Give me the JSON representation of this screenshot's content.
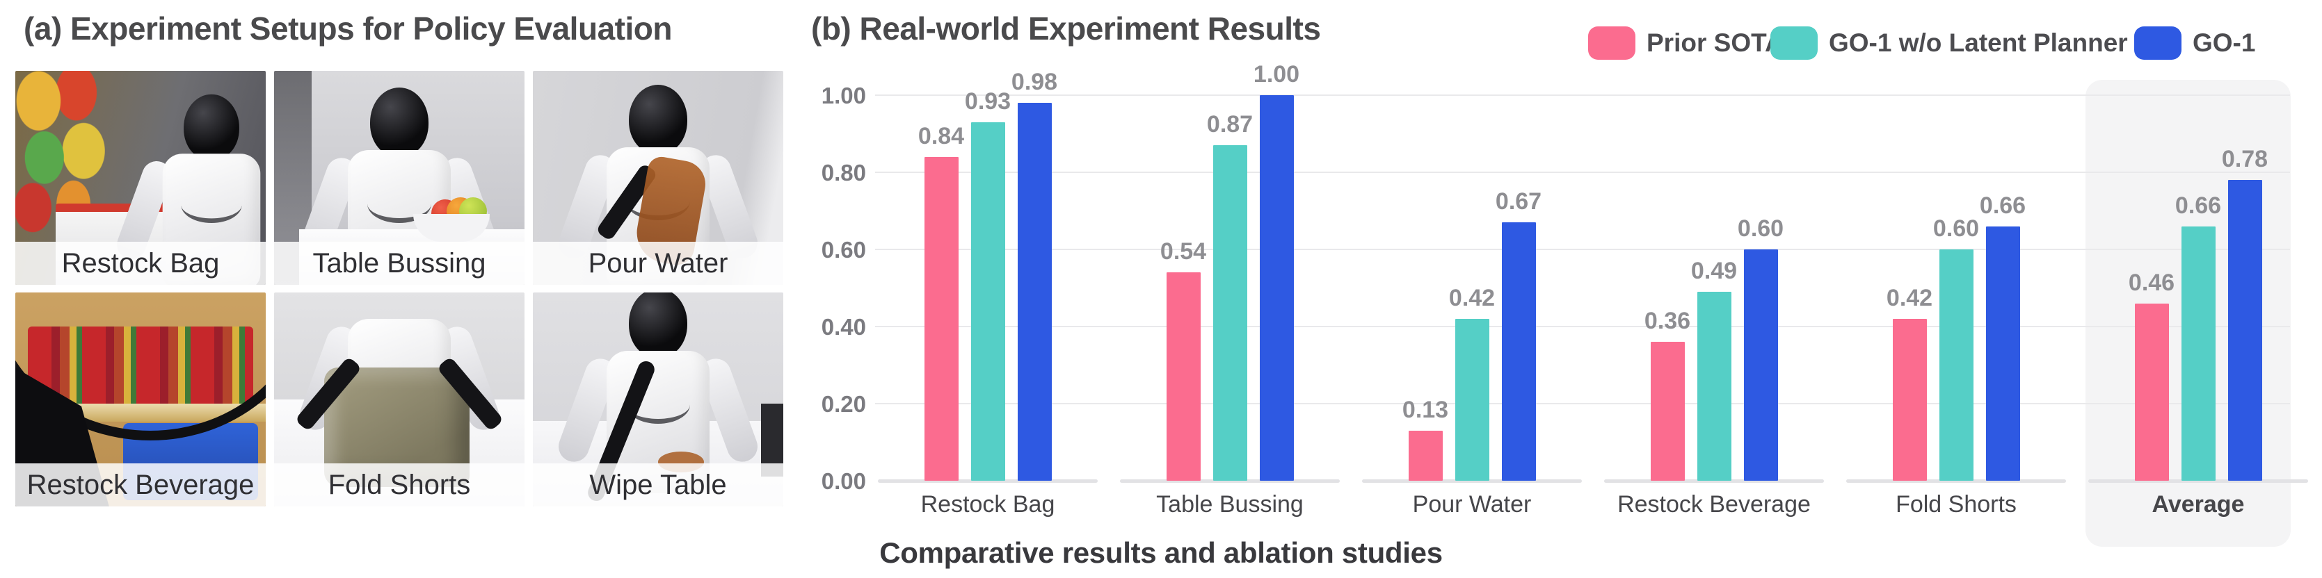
{
  "panel_a": {
    "title": "(a) Experiment Setups for Policy Evaluation",
    "photos": [
      {
        "label": "Restock Bag"
      },
      {
        "label": "Table Bussing"
      },
      {
        "label": "Pour Water"
      },
      {
        "label": "Restock Beverage"
      },
      {
        "label": "Fold Shorts"
      },
      {
        "label": "Wipe Table"
      }
    ]
  },
  "panel_b": {
    "title": "(b) Real-world Experiment Results",
    "caption": "Comparative results and ablation studies"
  },
  "chart_data": {
    "type": "bar",
    "title": "(b) Real-world Experiment Results",
    "categories": [
      "Restock Bag",
      "Table Bussing",
      "Pour Water",
      "Restock Beverage",
      "Fold Shorts",
      "Average"
    ],
    "series": [
      {
        "name": "Prior SOTA",
        "color": "#FB6C8F",
        "values": [
          0.84,
          0.54,
          0.13,
          0.36,
          0.42,
          0.46
        ]
      },
      {
        "name": "GO-1 w/o Latent Planner",
        "color": "#55CFC6",
        "values": [
          0.93,
          0.87,
          0.42,
          0.49,
          0.6,
          0.66
        ]
      },
      {
        "name": "GO-1",
        "color": "#2E59E2",
        "values": [
          0.98,
          1.0,
          0.67,
          0.6,
          0.66,
          0.78
        ]
      }
    ],
    "ylim": [
      0,
      1.0
    ],
    "yticks": [
      "1.00",
      "0.80",
      "0.60",
      "0.40",
      "0.20",
      "0.00"
    ],
    "grid": true,
    "value_labels": true,
    "legend_position": "top-right",
    "highlight_category": "Average",
    "highlight_color": "#f4f4f5",
    "xlabel": "",
    "ylabel": ""
  }
}
